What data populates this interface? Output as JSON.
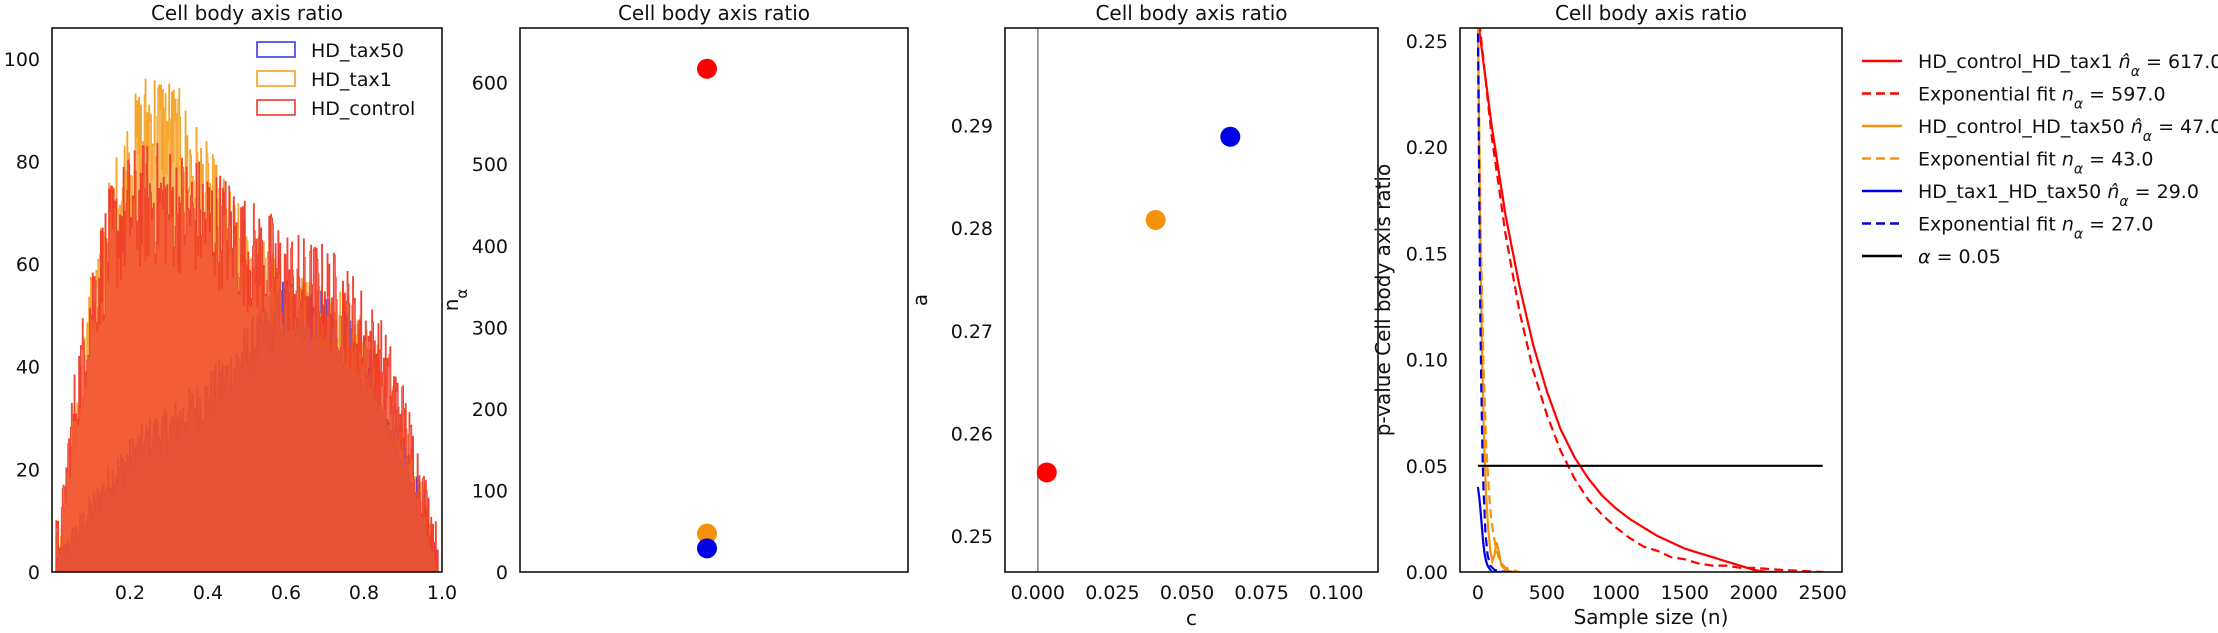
{
  "chart_data": [
    {
      "type": "histogram",
      "title": "Cell body axis ratio",
      "xlabel": "",
      "ylabel": "",
      "xlim": [
        0.0,
        1.0
      ],
      "ylim": [
        0,
        106
      ],
      "xticks": [
        0.2,
        0.4,
        0.6,
        0.8,
        1.0
      ],
      "xtick_labels": [
        "0.2",
        "0.4",
        "0.6",
        "0.8",
        "1.0"
      ],
      "yticks": [
        0,
        20,
        40,
        60,
        80,
        100
      ],
      "ytick_labels": [
        "0",
        "20",
        "40",
        "60",
        "80",
        "100"
      ],
      "legend_position": "top-right",
      "series": [
        {
          "name": "HD_tax50",
          "color": "#3a3aee",
          "x": [
            0.02,
            0.05,
            0.1,
            0.15,
            0.2,
            0.25,
            0.3,
            0.35,
            0.4,
            0.45,
            0.5,
            0.55,
            0.6,
            0.65,
            0.7,
            0.75,
            0.8,
            0.85,
            0.9,
            0.95,
            0.99
          ],
          "y": [
            2,
            6,
            12,
            18,
            22,
            26,
            28,
            31,
            34,
            38,
            43,
            47,
            52,
            51,
            48,
            45,
            40,
            34,
            24,
            12,
            2
          ]
        },
        {
          "name": "HD_tax1",
          "color": "#f5a020",
          "x": [
            0.02,
            0.05,
            0.1,
            0.15,
            0.2,
            0.25,
            0.3,
            0.35,
            0.4,
            0.45,
            0.5,
            0.55,
            0.6,
            0.65,
            0.7,
            0.75,
            0.8,
            0.85,
            0.9,
            0.95,
            0.99
          ],
          "y": [
            5,
            22,
            50,
            68,
            80,
            88,
            86,
            80,
            73,
            66,
            60,
            56,
            52,
            50,
            50,
            48,
            43,
            37,
            26,
            13,
            3
          ]
        },
        {
          "name": "HD_control",
          "color": "#f03a28",
          "x": [
            0.02,
            0.05,
            0.1,
            0.15,
            0.2,
            0.25,
            0.3,
            0.35,
            0.4,
            0.45,
            0.5,
            0.55,
            0.6,
            0.65,
            0.7,
            0.75,
            0.8,
            0.85,
            0.9,
            0.95,
            0.99
          ],
          "y": [
            6,
            28,
            52,
            64,
            70,
            72,
            71,
            70,
            68,
            66,
            62,
            60,
            57,
            55,
            54,
            51,
            46,
            40,
            30,
            16,
            4
          ]
        }
      ]
    },
    {
      "type": "scatter",
      "title": "Cell body axis ratio",
      "xlabel": "",
      "ylabel": "n_α",
      "ylim": [
        0,
        667
      ],
      "yticks": [
        0,
        100,
        200,
        300,
        400,
        500,
        600
      ],
      "ytick_labels": [
        "0",
        "100",
        "200",
        "300",
        "400",
        "500",
        "600"
      ],
      "points": [
        {
          "y": 617,
          "color": "#ff0000"
        },
        {
          "y": 47,
          "color": "#f5920a"
        },
        {
          "y": 29,
          "color": "#0000e6"
        }
      ]
    },
    {
      "type": "scatter",
      "title": "Cell body axis ratio",
      "xlabel": "c",
      "ylabel": "a",
      "xlim": [
        -0.011,
        0.114
      ],
      "ylim": [
        0.2465,
        0.2995
      ],
      "xticks": [
        0.0,
        0.025,
        0.05,
        0.075,
        0.1
      ],
      "xtick_labels": [
        "0.000",
        "0.025",
        "0.050",
        "0.075",
        "0.100"
      ],
      "yticks": [
        0.25,
        0.26,
        0.27,
        0.28,
        0.29
      ],
      "ytick_labels": [
        "0.25",
        "0.26",
        "0.27",
        "0.28",
        "0.29"
      ],
      "vline_x": 0.0,
      "points": [
        {
          "x": 0.003,
          "y": 0.2562,
          "color": "#ff0000"
        },
        {
          "x": 0.0395,
          "y": 0.2808,
          "color": "#f5920a"
        },
        {
          "x": 0.0645,
          "y": 0.2889,
          "color": "#0000e6"
        }
      ]
    },
    {
      "type": "line",
      "title": "Cell body axis ratio",
      "xlabel": "Sample size (n)",
      "ylabel": "p-value Cell body axis ratio",
      "xlim": [
        -130,
        2640
      ],
      "ylim": [
        0,
        0.256
      ],
      "xticks": [
        0,
        500,
        1000,
        1500,
        2000,
        2500
      ],
      "xtick_labels": [
        "0",
        "500",
        "1000",
        "1500",
        "2000",
        "2500"
      ],
      "yticks": [
        0,
        0.05,
        0.1,
        0.15,
        0.2,
        0.25
      ],
      "ytick_labels": [
        "0.00",
        "0.05",
        "0.10",
        "0.15",
        "0.20",
        "0.25"
      ],
      "legend_position": "outside-right",
      "series": [
        {
          "legend_label": "HD_control_HD_tax1",
          "legend_suffix": " = 617.0",
          "symbol": "n̂",
          "color": "#ff0000",
          "dashed": false,
          "x": [
            0,
            100,
            200,
            300,
            400,
            500,
            600,
            700,
            800,
            900,
            1000,
            1100,
            1200,
            1300,
            1400,
            1500,
            1600,
            1700,
            1800,
            1900,
            2000,
            2100,
            2200
          ],
          "y": [
            0.26,
            0.21,
            0.168,
            0.135,
            0.107,
            0.085,
            0.067,
            0.054,
            0.044,
            0.036,
            0.03,
            0.025,
            0.021,
            0.017,
            0.014,
            0.011,
            0.009,
            0.007,
            0.005,
            0.003,
            0.001,
            0.0,
            0.0
          ]
        },
        {
          "legend_label": "Exponential fit",
          "legend_suffix": " = 597.0",
          "symbol": "n",
          "color": "#ff0000",
          "dashed": true,
          "x": [
            0,
            100,
            200,
            300,
            400,
            500,
            600,
            700,
            800,
            900,
            1000,
            1100,
            1200,
            1300,
            1400,
            1500,
            1600,
            1700,
            1800,
            1900,
            2000,
            2200,
            2500
          ],
          "y": [
            0.265,
            0.205,
            0.159,
            0.123,
            0.095,
            0.074,
            0.057,
            0.044,
            0.034,
            0.027,
            0.021,
            0.016,
            0.012,
            0.01,
            0.007,
            0.006,
            0.004,
            0.003,
            0.003,
            0.002,
            0.002,
            0.001,
            0.0
          ]
        },
        {
          "legend_label": "HD_control_HD_tax50",
          "legend_suffix": " = 47.0",
          "symbol": "n̂",
          "color": "#f5920a",
          "dashed": false,
          "x": [
            0,
            15,
            30,
            45,
            60,
            75,
            90,
            105,
            120,
            135,
            150,
            170,
            200,
            250,
            300
          ],
          "y": [
            0.26,
            0.17,
            0.1,
            0.06,
            0.035,
            0.02,
            0.01,
            0.005,
            0.008,
            0.014,
            0.01,
            0.003,
            0.001,
            0.0,
            0.0
          ]
        },
        {
          "legend_label": "Exponential fit",
          "legend_suffix": " = 43.0",
          "symbol": "n",
          "color": "#f5920a",
          "dashed": true,
          "x": [
            0,
            20,
            40,
            60,
            80,
            100,
            130,
            160,
            200,
            300
          ],
          "y": [
            0.26,
            0.16,
            0.1,
            0.06,
            0.037,
            0.023,
            0.011,
            0.005,
            0.002,
            0.0
          ]
        },
        {
          "legend_label": "HD_tax1_HD_tax50",
          "legend_suffix": " = 29.0",
          "symbol": "n̂",
          "color": "#0000e6",
          "dashed": false,
          "x": [
            0,
            10,
            20,
            30,
            40,
            50,
            60,
            70,
            80,
            100,
            150,
            250
          ],
          "y": [
            0.04,
            0.035,
            0.028,
            0.02,
            0.013,
            0.008,
            0.005,
            0.003,
            0.002,
            0.0,
            0.0,
            0.0
          ]
        },
        {
          "legend_label": "Exponential fit",
          "legend_suffix": " = 27.0",
          "symbol": "n",
          "color": "#0000e6",
          "dashed": true,
          "x": [
            0,
            8,
            16,
            24,
            32,
            40,
            55,
            70,
            90,
            120,
            200
          ],
          "y": [
            0.26,
            0.19,
            0.13,
            0.09,
            0.06,
            0.04,
            0.018,
            0.008,
            0.003,
            0.001,
            0.0
          ]
        },
        {
          "legend_label": "α = 0.05",
          "legend_suffix": "",
          "symbol": "",
          "color": "#000000",
          "dashed": false,
          "x": [
            0,
            2500
          ],
          "y": [
            0.05,
            0.05
          ]
        }
      ]
    }
  ]
}
